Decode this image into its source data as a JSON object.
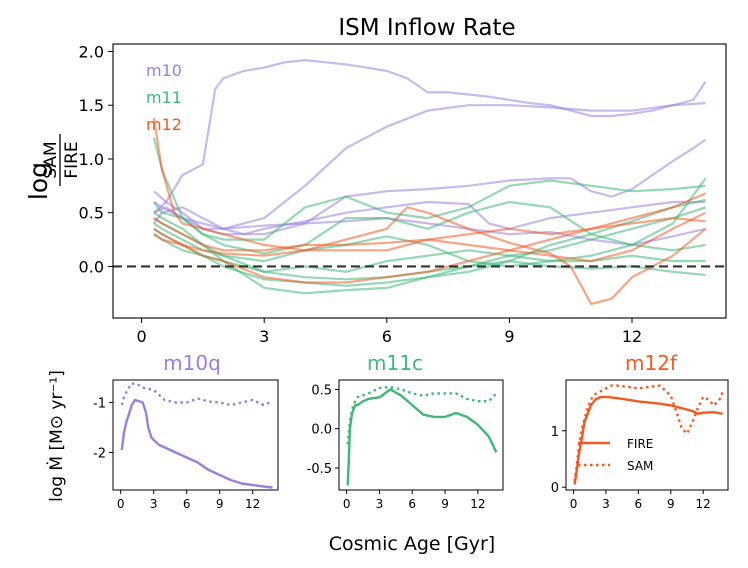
{
  "colors": {
    "m10": "#9b7fdc",
    "m11": "#3fb67a",
    "m12": "#f25a22",
    "axis": "#000000",
    "zero": "#333333"
  },
  "main": {
    "title": "ISM Inflow Rate",
    "ylabel_log": "log",
    "ylabel_num": "SAM",
    "ylabel_den": "FIRE",
    "legend": [
      "m10",
      "m11",
      "m12"
    ],
    "xticks": [
      "0",
      "3",
      "6",
      "9",
      "12"
    ],
    "yticks": [
      "0.0",
      "0.5",
      "1.0",
      "1.5",
      "2.0"
    ]
  },
  "panels_ylabel": "log Ṁ [M⊙ yr⁻¹]",
  "xlabel": "Cosmic Age [Gyr]",
  "panel_xticks": [
    "0",
    "3",
    "6",
    "9",
    "12"
  ],
  "panels": [
    {
      "title": "m10q",
      "yticks": [
        "-1",
        "-2"
      ]
    },
    {
      "title": "m11c",
      "yticks": [
        "0.5",
        "0.0",
        "-0.5"
      ]
    },
    {
      "title": "m12f",
      "yticks": [
        "1",
        "0"
      ],
      "legend": [
        "FIRE",
        "SAM"
      ]
    }
  ],
  "chart_data": [
    {
      "type": "line",
      "title": "ISM Inflow Rate",
      "xlabel": "Cosmic Age [Gyr]",
      "ylabel": "log SAM/FIRE",
      "xlim": [
        -0.7,
        14.3
      ],
      "ylim": [
        -0.48,
        2.07
      ],
      "zero_line": 0.0,
      "series": [
        {
          "name": "m10",
          "group": "m10",
          "x": [
            0.3,
            0.6,
            1,
            1.5,
            1.8,
            2,
            2.5,
            3,
            3.5,
            4,
            4.5,
            5,
            5.5,
            6,
            6.5,
            7,
            7.5,
            8,
            8.5,
            9,
            9.5,
            10,
            10.5,
            11,
            11.5,
            12,
            12.5,
            13,
            13.5,
            13.8
          ],
          "y": [
            0.5,
            0.6,
            0.85,
            0.95,
            1.65,
            1.75,
            1.82,
            1.85,
            1.9,
            1.92,
            1.9,
            1.88,
            1.85,
            1.82,
            1.75,
            1.62,
            1.62,
            1.6,
            1.58,
            1.55,
            1.52,
            1.5,
            1.45,
            1.4,
            1.4,
            1.42,
            1.45,
            1.5,
            1.55,
            1.72
          ]
        },
        {
          "name": "m10",
          "group": "m10",
          "x": [
            0.3,
            0.6,
            1,
            1.5,
            2,
            2.5,
            3,
            4,
            5,
            6,
            7,
            8,
            9,
            10,
            11,
            12,
            13,
            13.8
          ],
          "y": [
            0.7,
            0.6,
            0.5,
            0.35,
            0.35,
            0.4,
            0.45,
            0.75,
            1.1,
            1.3,
            1.45,
            1.5,
            1.5,
            1.48,
            1.45,
            1.45,
            1.5,
            1.52
          ]
        },
        {
          "name": "m10",
          "group": "m10",
          "x": [
            0.3,
            0.6,
            1,
            1.5,
            2,
            3,
            4,
            5,
            6,
            7,
            8,
            9,
            10,
            10.5,
            11,
            11.5,
            12,
            12.5,
            13,
            13.5,
            13.8
          ],
          "y": [
            0.5,
            0.55,
            0.45,
            0.35,
            0.3,
            0.3,
            0.4,
            0.65,
            0.7,
            0.72,
            0.75,
            0.8,
            0.82,
            0.82,
            0.7,
            0.65,
            0.72,
            0.85,
            0.98,
            1.1,
            1.18
          ]
        },
        {
          "name": "m10",
          "group": "m10",
          "x": [
            0.3,
            0.5,
            1,
            1.5,
            2,
            2.5,
            3,
            4,
            5,
            6,
            7,
            8,
            8.5,
            9,
            9.5,
            10,
            11,
            12,
            13,
            13.8
          ],
          "y": [
            0.4,
            0.5,
            0.55,
            0.45,
            0.35,
            0.3,
            0.35,
            0.42,
            0.5,
            0.55,
            0.6,
            0.58,
            0.4,
            0.35,
            0.4,
            0.45,
            0.5,
            0.55,
            0.6,
            0.6
          ]
        },
        {
          "name": "m10",
          "group": "m10",
          "x": [
            0.3,
            0.5,
            1,
            1.5,
            2,
            3,
            4,
            5,
            6,
            7,
            8,
            9,
            10,
            11,
            12,
            13,
            13.8
          ],
          "y": [
            0.6,
            0.55,
            0.45,
            0.4,
            0.35,
            0.38,
            0.4,
            0.42,
            0.45,
            0.4,
            0.35,
            0.3,
            0.32,
            0.25,
            0.2,
            0.28,
            0.35
          ]
        },
        {
          "name": "m11",
          "group": "m11",
          "x": [
            0.3,
            0.5,
            1,
            1.5,
            2,
            3,
            4,
            5,
            6,
            7,
            8,
            9,
            10,
            11,
            12,
            13,
            13.8
          ],
          "y": [
            1.2,
            0.9,
            0.45,
            0.3,
            0.25,
            0.25,
            0.55,
            0.65,
            0.5,
            0.45,
            0.55,
            0.75,
            0.8,
            0.75,
            0.7,
            0.72,
            0.75
          ]
        },
        {
          "name": "m11",
          "group": "m11",
          "x": [
            0.3,
            0.5,
            1,
            1.5,
            2,
            3,
            4,
            5,
            6,
            7,
            8,
            9,
            10,
            11,
            12,
            13,
            13.8
          ],
          "y": [
            0.6,
            0.5,
            0.45,
            0.3,
            0.2,
            0.12,
            0.2,
            0.45,
            0.45,
            0.35,
            0.5,
            0.6,
            0.55,
            0.3,
            0.2,
            0.15,
            0.2
          ]
        },
        {
          "name": "m11",
          "group": "m11",
          "x": [
            0.3,
            0.5,
            1,
            1.5,
            2,
            3,
            4,
            5,
            6,
            7,
            8,
            9,
            10,
            11,
            12,
            13,
            13.8
          ],
          "y": [
            0.45,
            0.4,
            0.3,
            0.2,
            0.1,
            0.05,
            0.15,
            0.2,
            0.28,
            0.2,
            0.05,
            0.0,
            0.05,
            0.1,
            0.2,
            0.4,
            0.82
          ]
        },
        {
          "name": "m11",
          "group": "m11",
          "x": [
            0.3,
            0.5,
            1,
            1.5,
            2,
            3,
            4,
            5,
            6,
            7,
            8,
            9,
            10,
            11,
            12,
            13,
            13.8
          ],
          "y": [
            0.3,
            0.25,
            0.15,
            0.1,
            0.05,
            -0.05,
            0.0,
            -0.05,
            0.05,
            0.1,
            0.15,
            0.1,
            0.05,
            0.05,
            0.1,
            0.05,
            0.05
          ]
        },
        {
          "name": "m11",
          "group": "m11",
          "x": [
            0.3,
            0.5,
            1,
            1.5,
            2,
            3,
            4,
            5,
            6,
            7,
            8,
            9,
            10,
            11,
            12,
            13,
            13.8
          ],
          "y": [
            0.4,
            0.35,
            0.25,
            0.15,
            0.1,
            -0.05,
            -0.1,
            -0.12,
            -0.1,
            -0.05,
            0.0,
            0.1,
            0.15,
            0.25,
            0.35,
            0.45,
            0.55
          ]
        },
        {
          "name": "m11",
          "group": "m11",
          "x": [
            0.3,
            0.5,
            1,
            1.5,
            2,
            3,
            4,
            5,
            6,
            7,
            8,
            9,
            10,
            11,
            12,
            13,
            13.8
          ],
          "y": [
            0.35,
            0.3,
            0.2,
            0.1,
            0.0,
            -0.12,
            -0.15,
            -0.18,
            -0.15,
            -0.1,
            -0.05,
            0.05,
            0.2,
            0.3,
            0.42,
            0.55,
            0.62
          ]
        },
        {
          "name": "m11",
          "group": "m11",
          "x": [
            0.3,
            0.5,
            1,
            1.5,
            2,
            3,
            4,
            5,
            6,
            7,
            8,
            9,
            10,
            11,
            12,
            13,
            13.8
          ],
          "y": [
            0.5,
            0.45,
            0.35,
            0.2,
            0.05,
            -0.2,
            -0.25,
            -0.22,
            -0.2,
            -0.1,
            0.0,
            0.05,
            0.0,
            -0.02,
            0.0,
            -0.05,
            -0.08
          ]
        },
        {
          "name": "m12",
          "group": "m12",
          "x": [
            0.3,
            0.5,
            0.8,
            1,
            1.5,
            2,
            3,
            4,
            5,
            6,
            7,
            8,
            9,
            10,
            11,
            12,
            13,
            13.8
          ],
          "y": [
            1.38,
            0.9,
            0.5,
            0.4,
            0.35,
            0.3,
            0.2,
            0.15,
            0.15,
            0.15,
            0.25,
            0.3,
            0.35,
            0.3,
            0.35,
            0.4,
            0.45,
            0.42
          ]
        },
        {
          "name": "m12",
          "group": "m12",
          "x": [
            0.3,
            0.5,
            1,
            1.5,
            2,
            3,
            4,
            5,
            6,
            6.5,
            7,
            8,
            9,
            10,
            10.5,
            11,
            11.5,
            12,
            13,
            13.8
          ],
          "y": [
            0.3,
            0.25,
            0.2,
            0.15,
            0.12,
            0.1,
            0.15,
            0.25,
            0.35,
            0.55,
            0.5,
            0.35,
            0.22,
            0.12,
            0.0,
            -0.35,
            -0.3,
            -0.1,
            0.1,
            0.35
          ]
        },
        {
          "name": "m12",
          "group": "m12",
          "x": [
            0.3,
            0.5,
            1,
            1.5,
            2,
            3,
            4,
            5,
            6,
            7,
            8,
            9,
            10,
            11,
            12,
            13,
            13.8
          ],
          "y": [
            0.45,
            0.4,
            0.3,
            0.2,
            0.15,
            0.15,
            0.2,
            0.2,
            0.22,
            0.25,
            0.2,
            0.15,
            0.1,
            0.05,
            0.15,
            0.35,
            0.5
          ]
        },
        {
          "name": "m12",
          "group": "m12",
          "x": [
            0.3,
            0.5,
            1,
            1.5,
            2,
            3,
            4,
            5,
            6,
            7,
            8,
            9,
            10,
            11,
            12,
            13,
            13.8
          ],
          "y": [
            0.35,
            0.3,
            0.2,
            0.1,
            0.05,
            -0.1,
            -0.15,
            -0.15,
            -0.1,
            -0.05,
            0.05,
            0.15,
            0.25,
            0.35,
            0.45,
            0.55,
            0.68
          ]
        }
      ]
    },
    {
      "type": "line",
      "title": "m10q",
      "xlim": [
        -0.7,
        14.3
      ],
      "ylim": [
        -2.75,
        -0.55
      ],
      "series": [
        {
          "name": "FIRE",
          "style": "solid",
          "x": [
            0.1,
            0.3,
            0.5,
            0.8,
            1,
            1.3,
            1.6,
            2,
            2.3,
            2.5,
            2.8,
            3,
            3.5,
            4,
            5,
            6,
            7,
            8,
            9,
            10,
            11,
            12,
            13,
            13.8
          ],
          "y": [
            -1.95,
            -1.6,
            -1.4,
            -1.2,
            -1.05,
            -0.95,
            -0.97,
            -1.0,
            -1.2,
            -1.5,
            -1.7,
            -1.75,
            -1.85,
            -1.9,
            -2.0,
            -2.1,
            -2.2,
            -2.35,
            -2.45,
            -2.55,
            -2.62,
            -2.65,
            -2.68,
            -2.7
          ]
        },
        {
          "name": "SAM",
          "style": "dotted",
          "x": [
            0.1,
            0.3,
            0.6,
            1,
            1.5,
            2,
            3,
            4,
            5,
            6,
            7,
            8,
            9,
            10,
            11,
            12,
            13,
            13.8
          ],
          "y": [
            -1.05,
            -0.9,
            -0.75,
            -0.62,
            -0.63,
            -0.7,
            -0.75,
            -0.95,
            -1.0,
            -1.0,
            -0.92,
            -0.98,
            -1.0,
            -1.05,
            -1.0,
            -0.95,
            -1.05,
            -0.98
          ]
        }
      ]
    },
    {
      "type": "line",
      "title": "m11c",
      "xlim": [
        -0.7,
        14.3
      ],
      "ylim": [
        -0.78,
        0.62
      ],
      "series": [
        {
          "name": "FIRE",
          "style": "solid",
          "x": [
            0.1,
            0.2,
            0.3,
            0.5,
            0.8,
            1,
            1.5,
            2,
            3,
            4,
            5,
            6,
            7,
            8,
            9,
            10,
            11,
            12,
            13,
            13.7
          ],
          "y": [
            -0.72,
            -0.4,
            0.0,
            0.2,
            0.3,
            0.3,
            0.35,
            0.38,
            0.4,
            0.5,
            0.42,
            0.3,
            0.18,
            0.15,
            0.15,
            0.2,
            0.15,
            0.05,
            -0.1,
            -0.3
          ]
        },
        {
          "name": "SAM",
          "style": "dotted",
          "x": [
            0.1,
            0.3,
            0.6,
            1,
            2,
            3,
            4,
            5,
            6,
            7,
            8,
            9,
            10,
            11,
            12,
            13,
            13.7
          ],
          "y": [
            -0.2,
            0.1,
            0.3,
            0.4,
            0.45,
            0.52,
            0.53,
            0.5,
            0.45,
            0.42,
            0.45,
            0.45,
            0.45,
            0.38,
            0.35,
            0.35,
            0.45
          ]
        }
      ]
    },
    {
      "type": "line",
      "title": "m12f",
      "xlim": [
        -0.7,
        14.3
      ],
      "ylim": [
        -0.05,
        1.9
      ],
      "series": [
        {
          "name": "FIRE",
          "style": "solid",
          "x": [
            0.1,
            0.3,
            0.5,
            0.8,
            1,
            1.3,
            1.6,
            2,
            2.5,
            3,
            4,
            5,
            6,
            7,
            8,
            9,
            10,
            11,
            11.5,
            12,
            13,
            13.8
          ],
          "y": [
            0.05,
            0.3,
            0.6,
            0.9,
            1.15,
            1.3,
            1.45,
            1.55,
            1.6,
            1.6,
            1.58,
            1.55,
            1.52,
            1.5,
            1.48,
            1.45,
            1.4,
            1.35,
            1.3,
            1.32,
            1.33,
            1.3
          ]
        },
        {
          "name": "SAM",
          "style": "dotted",
          "x": [
            0.1,
            0.3,
            0.5,
            0.8,
            1,
            1.3,
            1.6,
            2,
            2.5,
            3,
            3.5,
            4,
            5,
            6,
            7,
            8,
            9,
            9.5,
            10,
            10.5,
            11,
            11.5,
            12,
            12.5,
            13,
            13.5,
            13.8
          ],
          "y": [
            0.1,
            0.4,
            0.75,
            1.05,
            1.2,
            1.4,
            1.55,
            1.65,
            1.7,
            1.75,
            1.8,
            1.8,
            1.78,
            1.75,
            1.78,
            1.8,
            1.62,
            1.35,
            1.05,
            0.95,
            1.15,
            1.4,
            1.6,
            1.55,
            1.45,
            1.55,
            1.68
          ]
        }
      ]
    }
  ]
}
